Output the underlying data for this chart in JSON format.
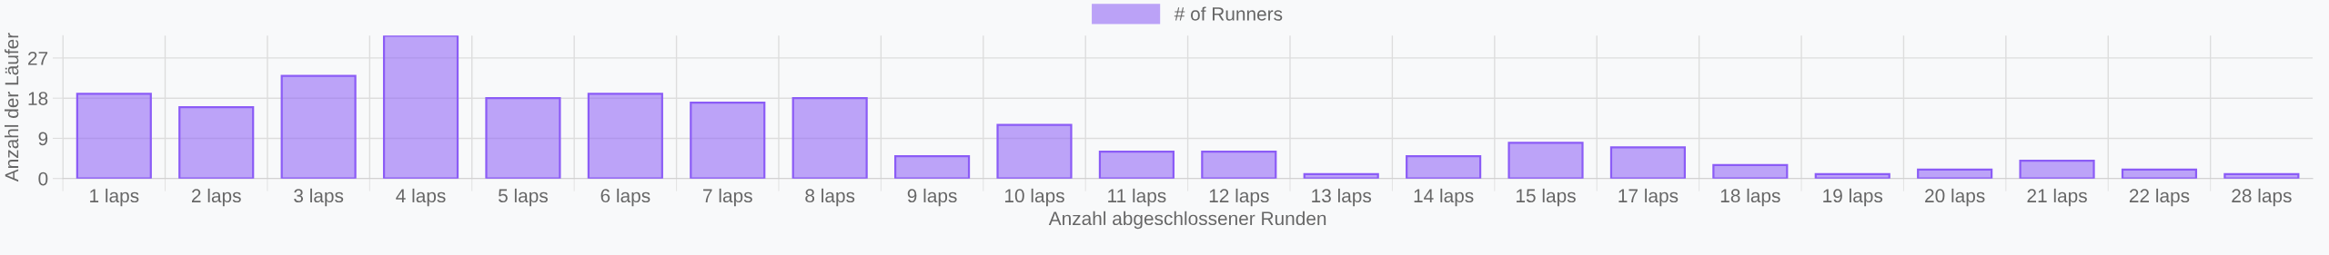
{
  "chart_data": {
    "type": "bar",
    "xlabel": "Anzahl abgeschlossener Runden",
    "ylabel": "Anzahl der Läufer",
    "categories": [
      "1 laps",
      "2 laps",
      "3 laps",
      "4 laps",
      "5 laps",
      "6 laps",
      "7 laps",
      "8 laps",
      "9 laps",
      "10 laps",
      "11 laps",
      "12 laps",
      "13 laps",
      "14 laps",
      "15 laps",
      "17 laps",
      "18 laps",
      "19 laps",
      "20 laps",
      "21 laps",
      "22 laps",
      "28 laps"
    ],
    "series": [
      {
        "name": "# of Runners",
        "color": "#8b5cf6",
        "values": [
          19,
          16,
          23,
          32,
          18,
          19,
          17,
          18,
          5,
          12,
          6,
          6,
          1,
          5,
          8,
          7,
          3,
          1,
          2,
          4,
          2,
          1
        ]
      }
    ],
    "ylim": [
      0,
      32
    ],
    "yticks": [
      0,
      9,
      18,
      27
    ],
    "grid": true,
    "legend": "top"
  }
}
